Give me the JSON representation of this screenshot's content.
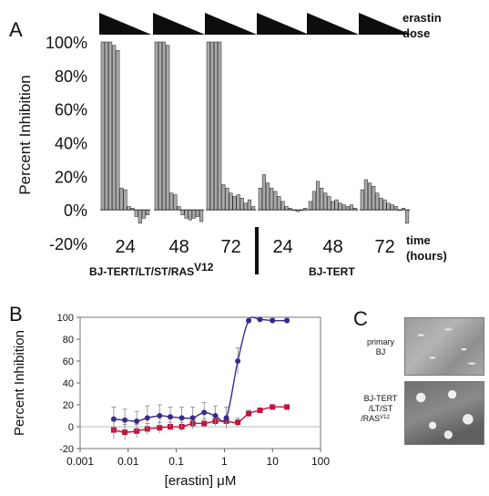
{
  "panel_labels": {
    "a": "A",
    "b": "B",
    "c": "C"
  },
  "panel_a": {
    "dose_label_line1": "erastin",
    "dose_label_line2": "dose",
    "y_tick_labels": [
      "100%",
      "80%",
      "60%",
      "40%",
      "20%",
      "0%",
      "-20%"
    ],
    "time_label_line1": "time",
    "time_label_line2": "(hours)",
    "group_labels": [
      "24",
      "48",
      "72",
      "24",
      "48",
      "72"
    ],
    "cell_line_1": "BJ-TERT/LT/ST/RAS",
    "cell_line_1_sup": "V12",
    "cell_line_2": "BJ-TERT"
  },
  "panel_c": {
    "top_label_line1": "primary",
    "top_label_line2": "BJ",
    "bottom_label_line1": "BJ-TERT",
    "bottom_label_line2": "/LT/ST",
    "bottom_label_line3": "/RAS",
    "bottom_label_sup": "V12"
  },
  "chart_data": [
    {
      "type": "bar",
      "panel": "A",
      "ylabel": "Percent Inhibition",
      "ylim": [
        -20,
        100
      ],
      "grid": false,
      "groups": [
        {
          "cell_line": "BJ-TERT/LT/ST/RASV12",
          "time_hours": 24,
          "values": [
            100,
            100,
            100,
            98,
            95,
            13,
            12,
            2,
            1,
            -4,
            -8,
            -5,
            -3
          ]
        },
        {
          "cell_line": "BJ-TERT/LT/ST/RASV12",
          "time_hours": 48,
          "values": [
            100,
            100,
            100,
            98,
            10,
            9,
            2,
            -3,
            -5,
            -6,
            -5,
            -4,
            -7
          ]
        },
        {
          "cell_line": "BJ-TERT/LT/ST/RASV12",
          "time_hours": 72,
          "values": [
            100,
            100,
            100,
            100,
            15,
            13,
            10,
            8,
            9,
            7,
            4,
            6,
            2
          ]
        },
        {
          "cell_line": "BJ-TERT",
          "time_hours": 24,
          "values": [
            13,
            21,
            16,
            13,
            11,
            8,
            5,
            2,
            1,
            0,
            -1,
            0,
            1
          ]
        },
        {
          "cell_line": "BJ-TERT",
          "time_hours": 48,
          "values": [
            5,
            11,
            17,
            13,
            10,
            8,
            5,
            6,
            4,
            3,
            2,
            3,
            1
          ]
        },
        {
          "cell_line": "BJ-TERT",
          "time_hours": 72,
          "values": [
            12,
            18,
            16,
            14,
            10,
            7,
            6,
            4,
            3,
            2,
            0,
            1,
            -8
          ]
        }
      ]
    },
    {
      "type": "line",
      "panel": "B",
      "xlabel": "[erastin] μM",
      "ylabel": "Percent Inhibition",
      "xscale": "log",
      "xlim": [
        0.001,
        100
      ],
      "ylim": [
        -20,
        100
      ],
      "x_tick_labels": [
        "0.001",
        "0.01",
        "0.1",
        "1",
        "10",
        "100"
      ],
      "y_tick_labels": [
        "100",
        "80",
        "60",
        "40",
        "20",
        "0",
        "-20"
      ],
      "grid": false,
      "x": [
        0.005,
        0.0085,
        0.015,
        0.025,
        0.045,
        0.075,
        0.13,
        0.22,
        0.38,
        0.65,
        1.1,
        1.9,
        3.2,
        5.5,
        10,
        20
      ],
      "series": [
        {
          "color": "#3b2a8a",
          "marker": "circle",
          "values": [
            7,
            6,
            5,
            8,
            10,
            9,
            8,
            8,
            13,
            10,
            8,
            60,
            97,
            98,
            97,
            97
          ],
          "errors": [
            11,
            10,
            9,
            11,
            10,
            9,
            10,
            10,
            9,
            9,
            10,
            12,
            3,
            2,
            2,
            2
          ]
        },
        {
          "color": "#c0143c",
          "marker": "square",
          "values": [
            -3,
            -5,
            -4,
            -2,
            -1,
            0,
            0,
            3,
            3,
            5,
            5,
            4,
            12,
            15,
            18,
            18
          ],
          "errors": [
            8,
            7,
            6,
            5,
            5,
            4,
            4,
            5,
            4,
            4,
            4,
            4,
            3,
            2,
            2,
            2
          ]
        }
      ]
    }
  ]
}
